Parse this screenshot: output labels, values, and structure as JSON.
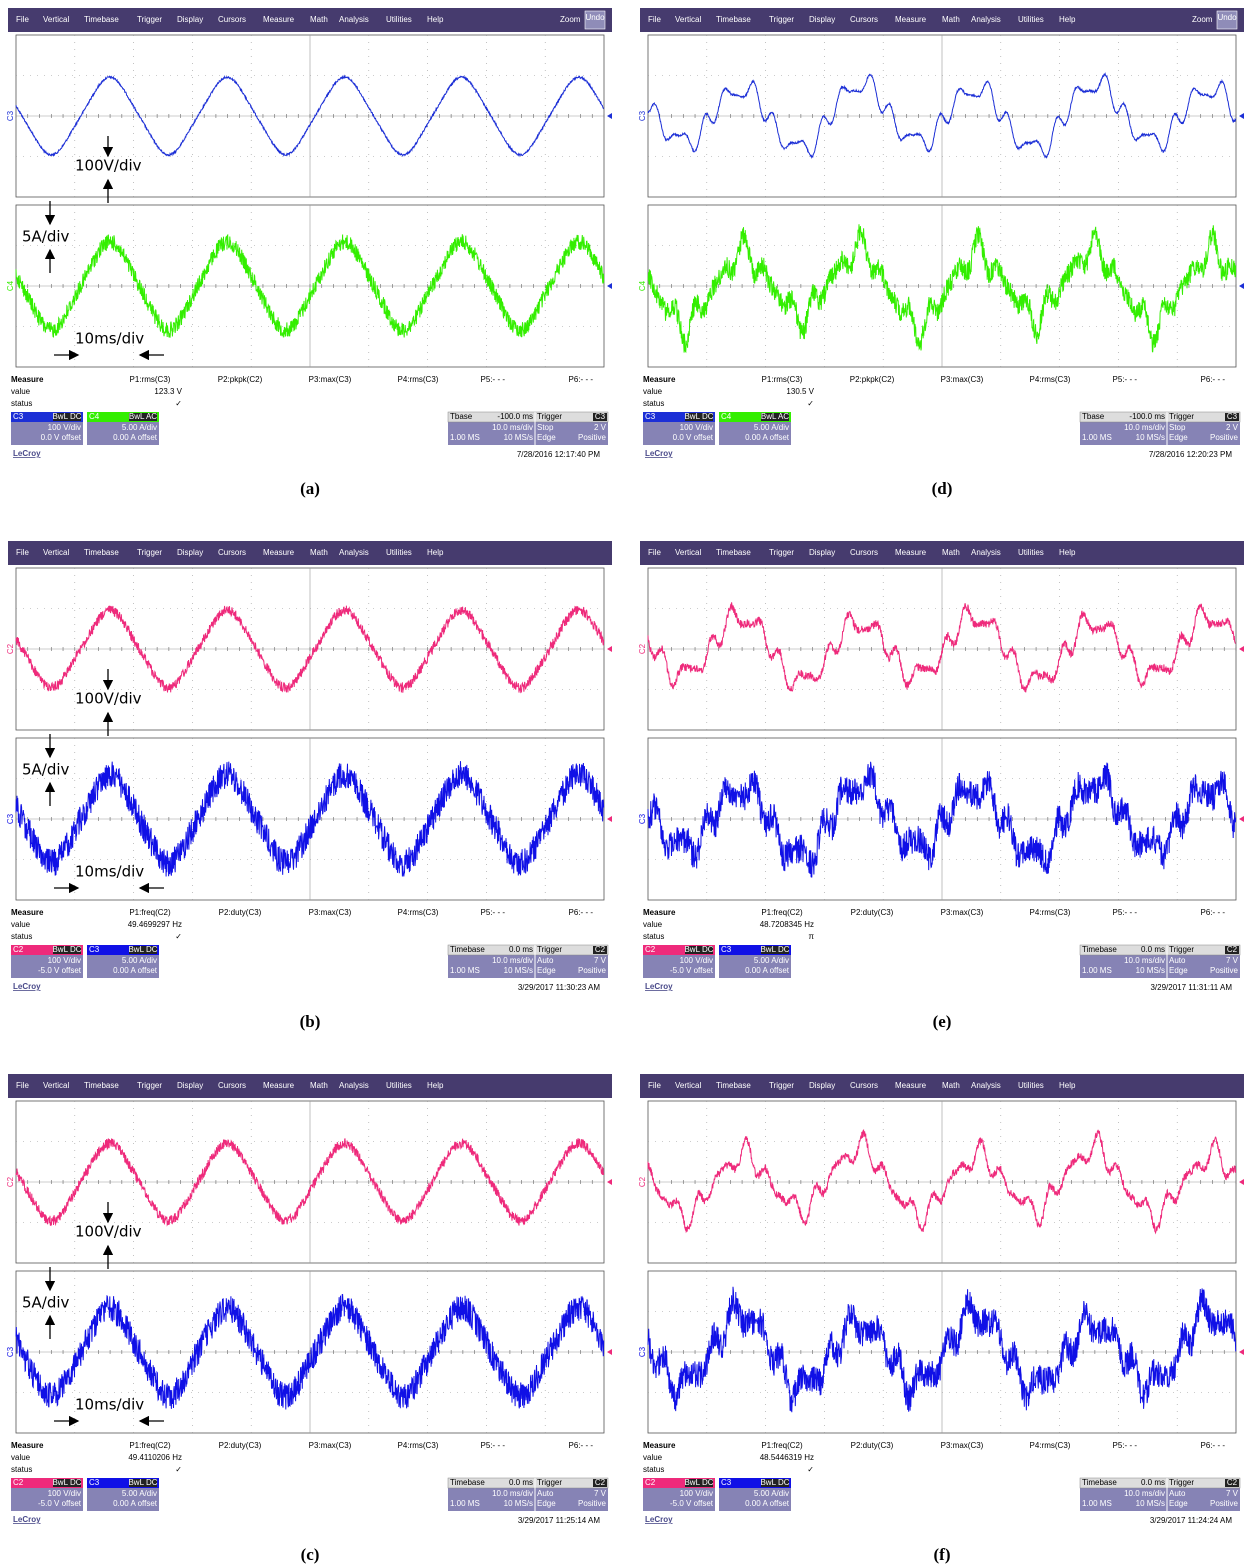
{
  "menu": [
    "File",
    "Vertical",
    "Timebase",
    "Trigger",
    "Display",
    "Cursors",
    "Measure",
    "Math",
    "Analysis",
    "Utilities",
    "Help"
  ],
  "measure_title": "Measure",
  "measure_rows": [
    "value",
    "status"
  ],
  "brand": "LeCroy",
  "panels": [
    {
      "caption": "(a)",
      "toolbar_right": [
        "Zoom",
        "Undo"
      ],
      "trace_colors": [
        "#1c2fd6",
        "#33ee00"
      ],
      "ch_labels": [
        "C3",
        "C4"
      ],
      "params": [
        "P1:rms(C3)",
        "P2:pkpk(C2)",
        "P3:max(C3)",
        "P4:rms(C3)",
        "P5:- - -",
        "P6:- - -"
      ],
      "value": "123.3 V",
      "status": "✓",
      "channels": [
        {
          "name": "C3",
          "tag": "BwL DC",
          "scale": "100 V/div",
          "offset": "0.0 V offset"
        },
        {
          "name": "C4",
          "tag": "BwL AC",
          "scale": "5.00 A/div",
          "offset": "0.00 A offset"
        }
      ],
      "timebase": {
        "title": "Tbase",
        "delay": "-100.0 ms",
        "scale": "10.0 ms/div",
        "samples": "1.00 MS",
        "rate": "10 MS/s"
      },
      "trigger": {
        "title": "Trigger",
        "ch": "C3",
        "mode": "Stop",
        "level": "2 V",
        "type": "Edge",
        "slope": "Positive"
      },
      "timestamp": "7/28/2016 12:17:40 PM",
      "annotations": [
        "100V/div",
        "5A/div",
        "10ms/div"
      ]
    },
    {
      "caption": "(d)",
      "toolbar_right": [
        "Zoom",
        "Undo"
      ],
      "trace_colors": [
        "#1c2fd6",
        "#33ee00"
      ],
      "ch_labels": [
        "C3",
        "C4"
      ],
      "params": [
        "P1:rms(C3)",
        "P2:pkpk(C2)",
        "P3:max(C3)",
        "P4:rms(C3)",
        "P5:- - -",
        "P6:- - -"
      ],
      "value": "130.5 V",
      "status": "✓",
      "channels": [
        {
          "name": "C3",
          "tag": "BwL DC",
          "scale": "100 V/div",
          "offset": "0.0 V offset"
        },
        {
          "name": "C4",
          "tag": "BwL AC",
          "scale": "5.00 A/div",
          "offset": "0.00 A offset"
        }
      ],
      "timebase": {
        "title": "Tbase",
        "delay": "-100.0 ms",
        "scale": "10.0 ms/div",
        "samples": "1.00 MS",
        "rate": "10 MS/s"
      },
      "trigger": {
        "title": "Trigger",
        "ch": "C3",
        "mode": "Stop",
        "level": "2 V",
        "type": "Edge",
        "slope": "Positive"
      },
      "timestamp": "7/28/2016 12:20:23 PM"
    },
    {
      "caption": "(b)",
      "trace_colors": [
        "#ee2a7b",
        "#1010e6"
      ],
      "ch_labels": [
        "C2",
        "C3"
      ],
      "params": [
        "P1:freq(C2)",
        "P2:duty(C3)",
        "P3:max(C3)",
        "P4:rms(C3)",
        "P5:- - -",
        "P6:- - -"
      ],
      "value": "49.4699297 Hz",
      "status": "✓",
      "channels": [
        {
          "name": "C2",
          "tag": "BwL DC",
          "scale": "100 V/div",
          "offset": "-5.0 V offset"
        },
        {
          "name": "C3",
          "tag": "BwL DC",
          "scale": "5.00 A/div",
          "offset": "0.00 A offset"
        }
      ],
      "timebase": {
        "title": "Timebase",
        "delay": "0.0 ms",
        "scale": "10.0 ms/div",
        "samples": "1.00 MS",
        "rate": "10 MS/s"
      },
      "trigger": {
        "title": "Trigger",
        "ch": "C2",
        "mode": "Auto",
        "level": "7 V",
        "type": "Edge",
        "slope": "Positive"
      },
      "timestamp": "3/29/2017 11:30:23 AM",
      "annotations": [
        "100V/div",
        "5A/div",
        "10ms/div"
      ]
    },
    {
      "caption": "(e)",
      "trace_colors": [
        "#ee2a7b",
        "#1010e6"
      ],
      "ch_labels": [
        "C2",
        "C3"
      ],
      "params": [
        "P1:freq(C2)",
        "P2:duty(C3)",
        "P3:max(C3)",
        "P4:rms(C3)",
        "P5:- - -",
        "P6:- - -"
      ],
      "value": "48.7208345 Hz",
      "status": "π",
      "channels": [
        {
          "name": "C2",
          "tag": "BwL DC",
          "scale": "100 V/div",
          "offset": "-5.0 V offset"
        },
        {
          "name": "C3",
          "tag": "BwL DC",
          "scale": "5.00 A/div",
          "offset": "0.00 A offset"
        }
      ],
      "timebase": {
        "title": "Timebase",
        "delay": "0.0 ms",
        "scale": "10.0 ms/div",
        "samples": "1.00 MS",
        "rate": "10 MS/s"
      },
      "trigger": {
        "title": "Trigger",
        "ch": "C2",
        "mode": "Auto",
        "level": "7 V",
        "type": "Edge",
        "slope": "Positive"
      },
      "timestamp": "3/29/2017 11:31:11 AM"
    },
    {
      "caption": "(c)",
      "trace_colors": [
        "#ee2a7b",
        "#1010e6"
      ],
      "ch_labels": [
        "C2",
        "C3"
      ],
      "params": [
        "P1:freq(C2)",
        "P2:duty(C3)",
        "P3:max(C3)",
        "P4:rms(C3)",
        "P5:- - -",
        "P6:- - -"
      ],
      "value": "49.4110206 Hz",
      "status": "✓",
      "channels": [
        {
          "name": "C2",
          "tag": "BwL DC",
          "scale": "100 V/div",
          "offset": "-5.0 V offset"
        },
        {
          "name": "C3",
          "tag": "BwL DC",
          "scale": "5.00 A/div",
          "offset": "0.00 A offset"
        }
      ],
      "timebase": {
        "title": "Timebase",
        "delay": "0.0 ms",
        "scale": "10.0 ms/div",
        "samples": "1.00 MS",
        "rate": "10 MS/s"
      },
      "trigger": {
        "title": "Trigger",
        "ch": "C2",
        "mode": "Auto",
        "level": "7 V",
        "type": "Edge",
        "slope": "Positive"
      },
      "timestamp": "3/29/2017 11:25:14 AM",
      "annotations": [
        "100V/div",
        "5A/div",
        "10ms/div"
      ]
    },
    {
      "caption": "(f)",
      "trace_colors": [
        "#ee2a7b",
        "#1010e6"
      ],
      "ch_labels": [
        "C2",
        "C3"
      ],
      "params": [
        "P1:freq(C2)",
        "P2:duty(C3)",
        "P3:max(C3)",
        "P4:rms(C3)",
        "P5:- - -",
        "P6:- - -"
      ],
      "value": "48.5446319 Hz",
      "status": "✓",
      "channels": [
        {
          "name": "C2",
          "tag": "BwL DC",
          "scale": "100 V/div",
          "offset": "-5.0 V offset"
        },
        {
          "name": "C3",
          "tag": "BwL DC",
          "scale": "5.00 A/div",
          "offset": "0.00 A offset"
        }
      ],
      "timebase": {
        "title": "Timebase",
        "delay": "0.0 ms",
        "scale": "10.0 ms/div",
        "samples": "1.00 MS",
        "rate": "10 MS/s"
      },
      "trigger": {
        "title": "Trigger",
        "ch": "C2",
        "mode": "Auto",
        "level": "7 V",
        "type": "Edge",
        "slope": "Positive"
      },
      "timestamp": "3/29/2017 11:24:24 AM"
    }
  ]
}
